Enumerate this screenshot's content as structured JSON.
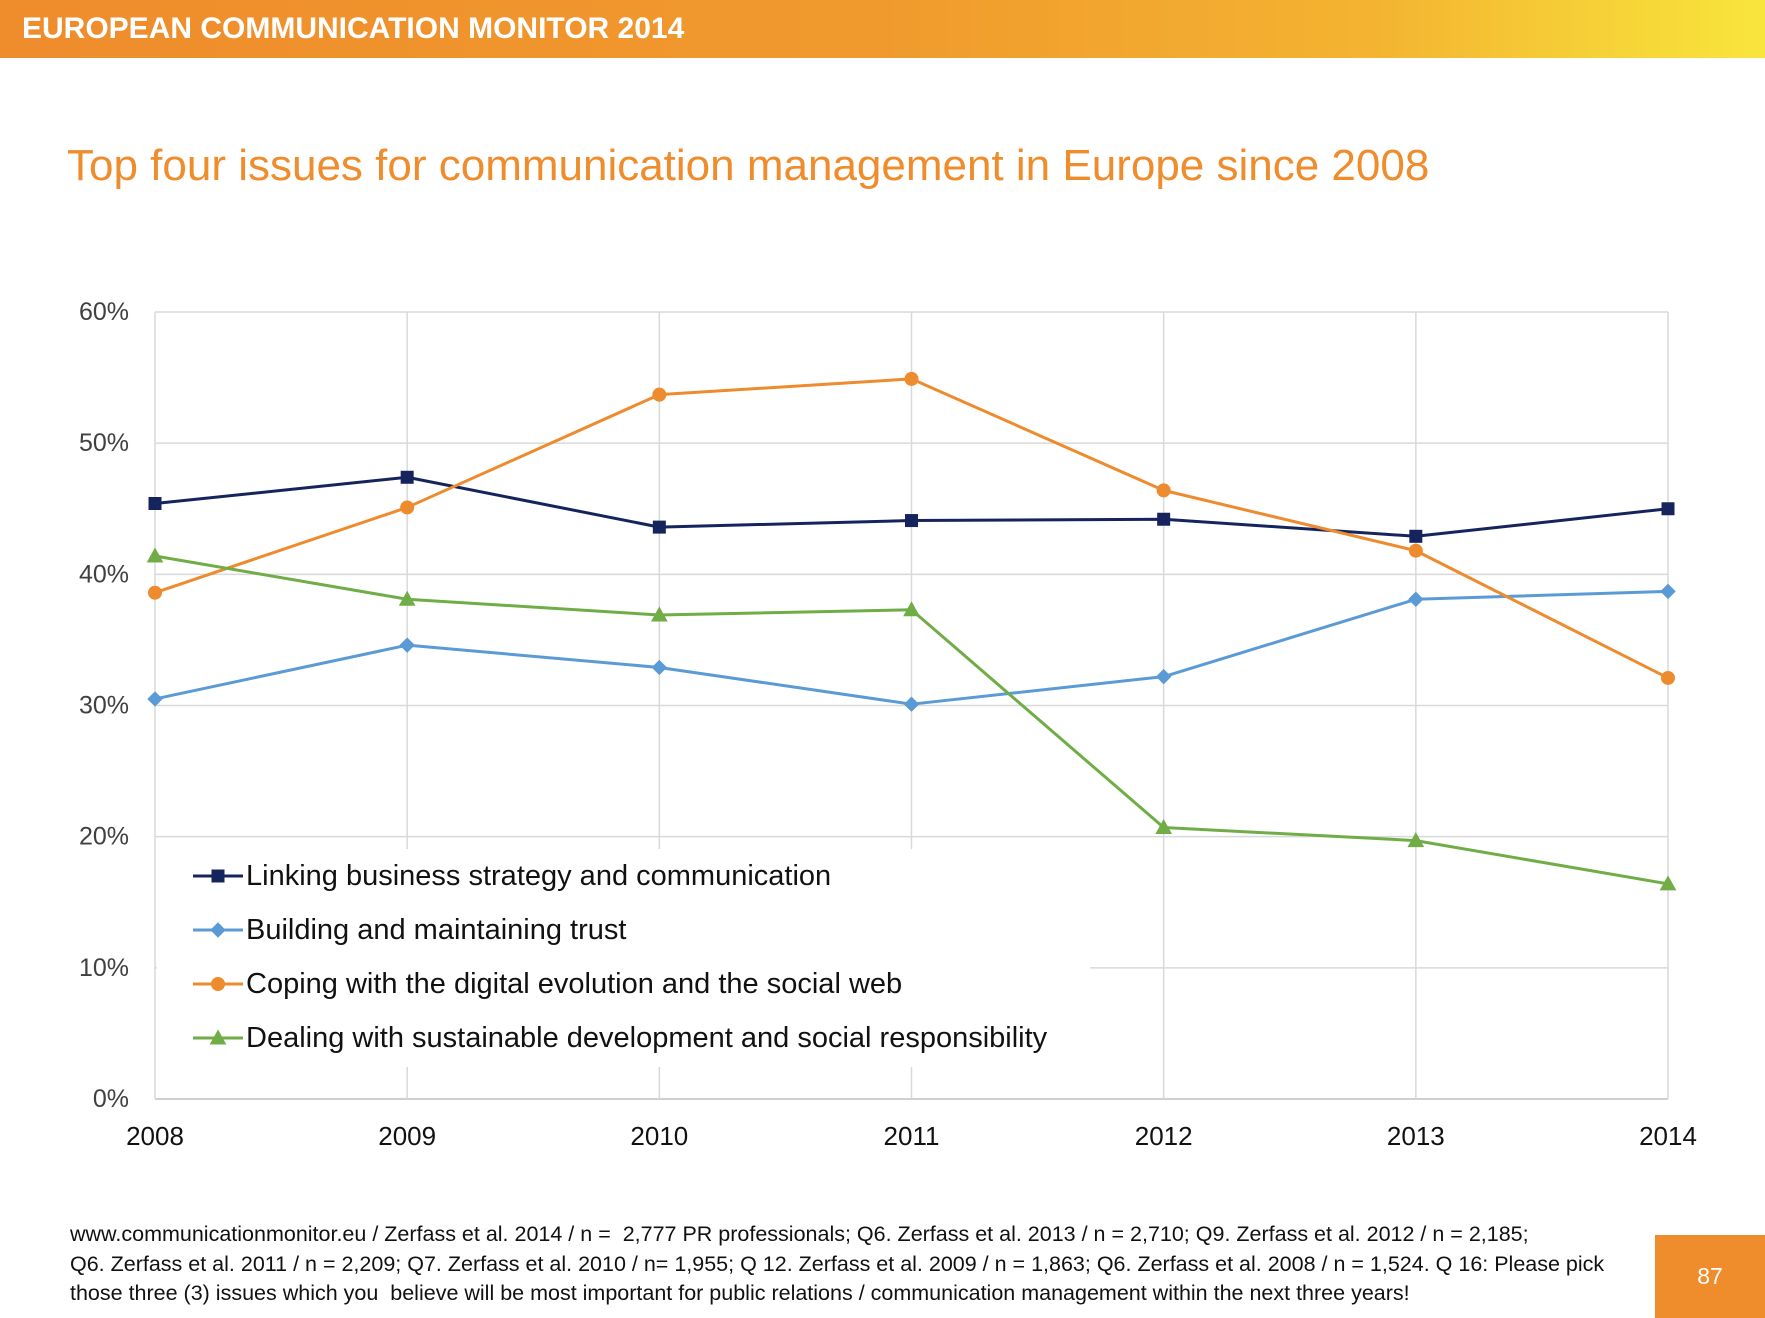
{
  "theme": {
    "accent": "#EF8C2C",
    "header_gradient_end": "#F8E63C"
  },
  "header": {
    "title": "EUROPEAN COMMUNICATION MONITOR 2014"
  },
  "slide": {
    "page_number": "87"
  },
  "footer": {
    "lines": [
      "www.communicationmonitor.eu / Zerfass et al. 2014 / n =  2,777 PR professionals; Q6. Zerfass et al. 2013 / n = 2,710; Q9. Zerfass et al. 2012 / n = 2,185;",
      "Q6. Zerfass et al. 2011 / n = 2,209; Q7. Zerfass et al. 2010 / n= 1,955; Q 12. Zerfass et al. 2009 / n = 1,863; Q6. Zerfass et al. 2008 / n = 1,524. Q 16: Please pick",
      "those three (3) issues which you  believe will be most important for public relations / communication management within the next three years!"
    ]
  },
  "chart_data": {
    "type": "line",
    "title": "Top four issues for communication management in Europe since 2008",
    "categories": [
      "2008",
      "2009",
      "2010",
      "2011",
      "2012",
      "2013",
      "2014"
    ],
    "y_tick_labels": [
      "0%",
      "10%",
      "20%",
      "30%",
      "40%",
      "50%",
      "60%"
    ],
    "ylim": [
      0,
      60
    ],
    "grid": true,
    "legend_position": "lower-left",
    "series": [
      {
        "name": "Linking business strategy and communication",
        "color": "#16245E",
        "marker": "square",
        "values": [
          45.4,
          47.4,
          43.6,
          44.1,
          44.2,
          42.9,
          45.0
        ]
      },
      {
        "name": "Building and maintaining trust",
        "color": "#5B9BD5",
        "marker": "diamond",
        "values": [
          30.5,
          34.6,
          32.9,
          30.1,
          32.2,
          38.1,
          38.7
        ]
      },
      {
        "name": "Coping with the digital evolution and the social web",
        "color": "#ED8B2E",
        "marker": "circle",
        "values": [
          38.6,
          45.1,
          53.7,
          54.9,
          46.4,
          41.8,
          32.1
        ]
      },
      {
        "name": "Dealing with sustainable development and social responsibility",
        "color": "#70AD47",
        "marker": "triangle",
        "values": [
          41.4,
          38.1,
          36.9,
          37.3,
          20.7,
          19.7,
          16.4
        ]
      }
    ]
  }
}
